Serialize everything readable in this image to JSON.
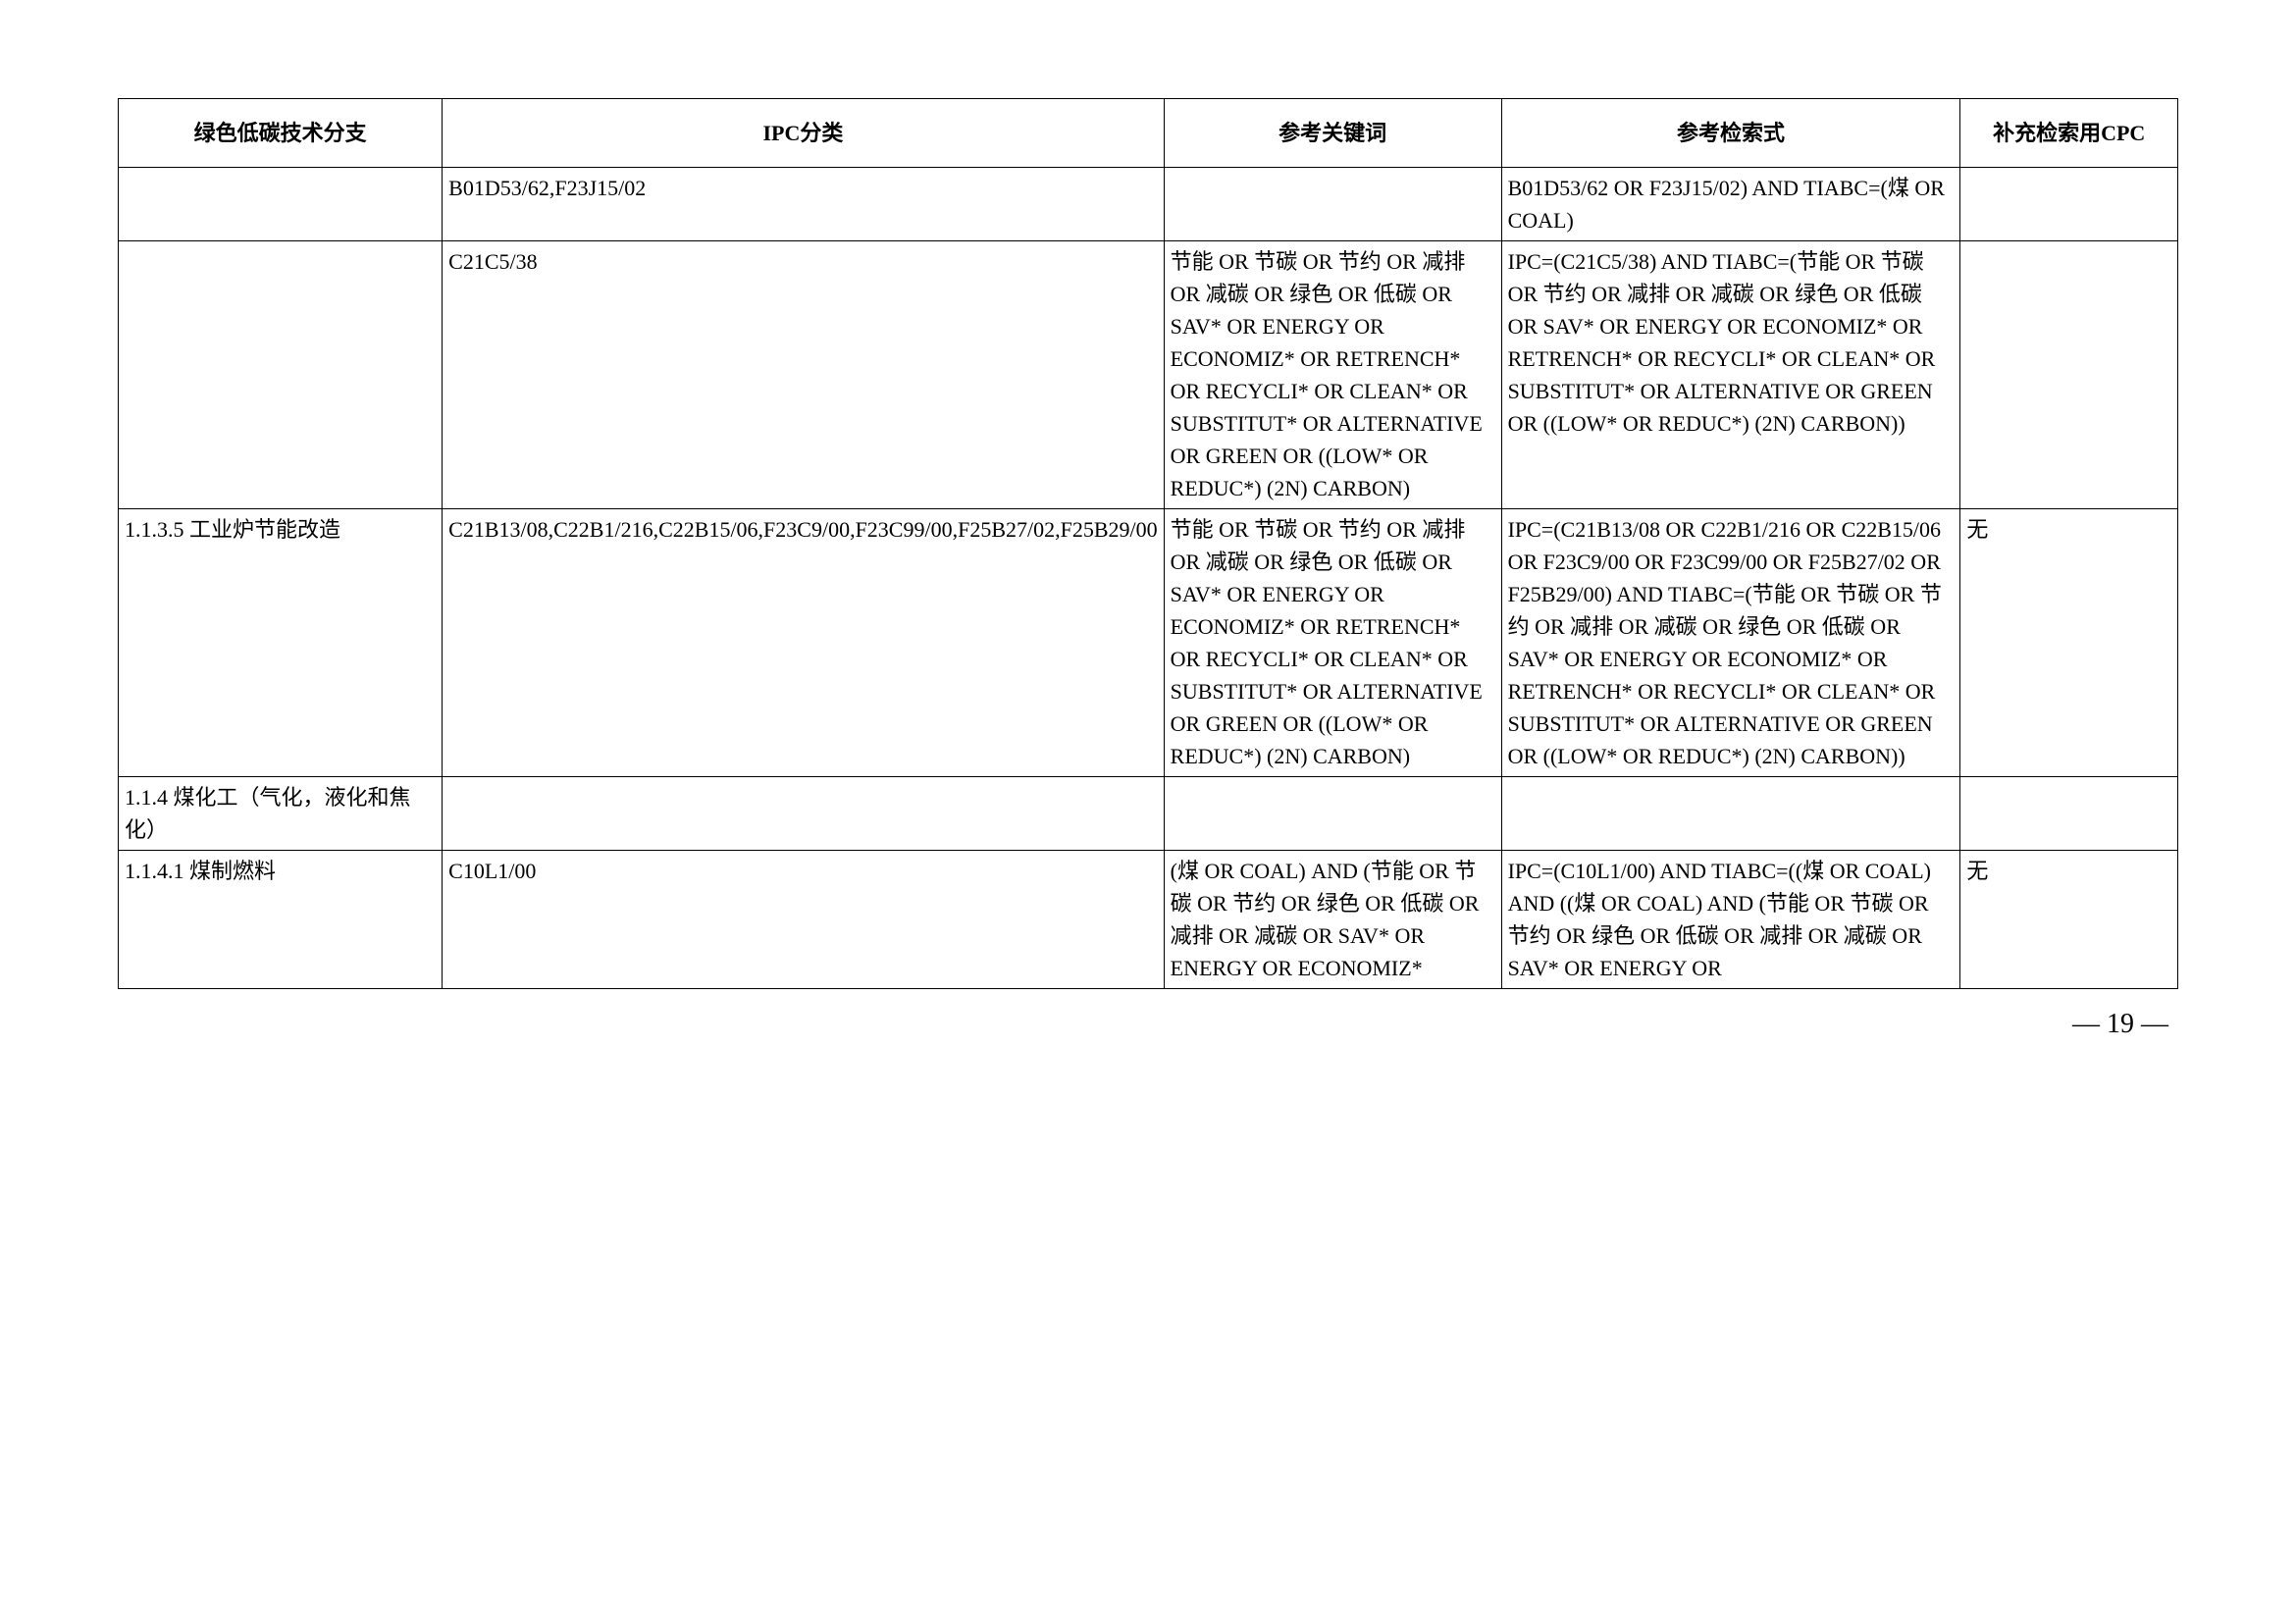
{
  "columns": {
    "c1": "绿色低碳技术分支",
    "c2": "IPC分类",
    "c3": "参考关键词",
    "c4": "参考检索式",
    "c5": "补充检索用CPC"
  },
  "rows": [
    {
      "c1": "",
      "c2": "B01D53/62,F23J15/02",
      "c3": "",
      "c4": "B01D53/62 OR F23J15/02) AND TIABC=(煤 OR COAL)",
      "c5": ""
    },
    {
      "c1": "",
      "c2": "C21C5/38",
      "c3": "节能 OR 节碳 OR 节约 OR 减排 OR 减碳 OR 绿色 OR 低碳 OR SAV* OR ENERGY OR ECONOMIZ* OR RETRENCH* OR RECYCLI* OR CLEAN* OR SUBSTITUT* OR ALTERNATIVE OR GREEN OR ((LOW* OR REDUC*) (2N) CARBON)",
      "c4": "IPC=(C21C5/38) AND TIABC=(节能 OR 节碳 OR 节约 OR 减排 OR 减碳 OR 绿色 OR 低碳 OR SAV* OR ENERGY OR ECONOMIZ* OR RETRENCH* OR RECYCLI* OR CLEAN* OR SUBSTITUT* OR ALTERNATIVE OR GREEN OR ((LOW* OR REDUC*) (2N) CARBON))",
      "c5": ""
    },
    {
      "c1": "1.1.3.5 工业炉节能改造",
      "c2": "C21B13/08,C22B1/216,C22B15/06,F23C9/00,F23C99/00,F25B27/02,F25B29/00",
      "c3": "节能 OR 节碳 OR 节约 OR 减排 OR 减碳 OR 绿色 OR 低碳 OR SAV* OR ENERGY OR ECONOMIZ* OR RETRENCH* OR RECYCLI* OR CLEAN* OR SUBSTITUT* OR ALTERNATIVE OR GREEN OR ((LOW* OR REDUC*) (2N) CARBON)",
      "c4": "IPC=(C21B13/08 OR C22B1/216 OR C22B15/06 OR F23C9/00 OR F23C99/00 OR F25B27/02 OR F25B29/00) AND TIABC=(节能 OR 节碳 OR 节约 OR 减排 OR 减碳 OR 绿色 OR 低碳 OR SAV* OR ENERGY OR ECONOMIZ* OR RETRENCH* OR RECYCLI* OR CLEAN* OR SUBSTITUT* OR ALTERNATIVE OR GREEN OR ((LOW* OR REDUC*) (2N) CARBON))",
      "c5": "无"
    },
    {
      "c1": "1.1.4 煤化工（气化，液化和焦化）",
      "c2": "",
      "c3": "",
      "c4": "",
      "c5": ""
    },
    {
      "c1": "1.1.4.1 煤制燃料",
      "c2": "C10L1/00",
      "c3": "(煤 OR COAL) AND (节能 OR 节碳 OR 节约 OR 绿色 OR 低碳 OR 减排 OR 减碳 OR SAV* OR ENERGY OR ECONOMIZ*",
      "c4": "IPC=(C10L1/00) AND TIABC=((煤 OR COAL) AND ((煤 OR COAL) AND (节能 OR 节碳 OR 节约 OR 绿色 OR 低碳 OR 减排 OR 减碳 OR SAV* OR ENERGY OR",
      "c5": "无"
    }
  ],
  "page_number": "— 19 —"
}
